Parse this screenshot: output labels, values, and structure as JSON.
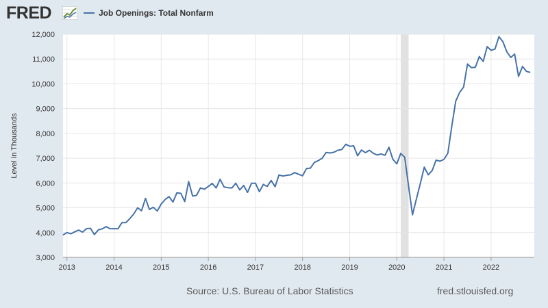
{
  "brand": {
    "logo_text": "FRED",
    "logo_icon": "trend-graph-icon"
  },
  "footer": {
    "source": "Source: U.S. Bureau of Labor Statistics",
    "url": "fred.stlouisfed.org"
  },
  "colors": {
    "background": "#e1e9f0",
    "plot_background": "#ffffff",
    "series": "#4572a7",
    "recession": "#e1e1e1",
    "grid": "#e6e6e6"
  },
  "chart_data": {
    "type": "line",
    "title": "",
    "xlabel": "",
    "ylabel": "Level in Thousands",
    "grid": true,
    "legend_position": "top-left",
    "xlim": [
      2012.917,
      2022.917
    ],
    "ylim": [
      3000,
      12000
    ],
    "x_ticks": [
      2013,
      2014,
      2015,
      2016,
      2017,
      2018,
      2019,
      2020,
      2021,
      2022
    ],
    "y_ticks": [
      3000,
      4000,
      5000,
      6000,
      7000,
      8000,
      9000,
      10000,
      11000,
      12000
    ],
    "y_tick_labels": [
      "3,000",
      "4,000",
      "5,000",
      "6,000",
      "7,000",
      "8,000",
      "9,000",
      "10,000",
      "11,000",
      "12,000"
    ],
    "recessions": [
      [
        2020.083,
        2020.25
      ]
    ],
    "series": [
      {
        "name": "Job Openings: Total Nonfarm",
        "start": "2012-12",
        "frequency": "monthly",
        "values": [
          3900,
          4000,
          3950,
          4030,
          4100,
          4020,
          4160,
          4170,
          3920,
          4110,
          4150,
          4240,
          4150,
          4160,
          4150,
          4400,
          4400,
          4560,
          4750,
          5000,
          4880,
          5380,
          4930,
          5020,
          4870,
          5150,
          5330,
          5450,
          5230,
          5600,
          5580,
          5250,
          6060,
          5470,
          5500,
          5800,
          5750,
          5860,
          5980,
          5800,
          6150,
          5840,
          5810,
          5800,
          5990,
          5720,
          5900,
          5620,
          5990,
          5990,
          5650,
          5940,
          5860,
          6100,
          5850,
          6320,
          6280,
          6310,
          6330,
          6420,
          6350,
          6290,
          6580,
          6600,
          6830,
          6900,
          7000,
          7230,
          7210,
          7240,
          7320,
          7350,
          7560,
          7480,
          7500,
          7100,
          7330,
          7220,
          7320,
          7200,
          7130,
          7170,
          7120,
          7440,
          6950,
          6770,
          7190,
          7040,
          5870,
          4720,
          5370,
          5990,
          6640,
          6330,
          6500,
          6920,
          6880,
          6950,
          7200,
          8300,
          9300,
          9650,
          9870,
          10800,
          10650,
          10670,
          11100,
          10900,
          11500,
          11350,
          11400,
          11900,
          11700,
          11300,
          11060,
          11200,
          10300,
          10700,
          10500,
          10460
        ]
      }
    ]
  }
}
